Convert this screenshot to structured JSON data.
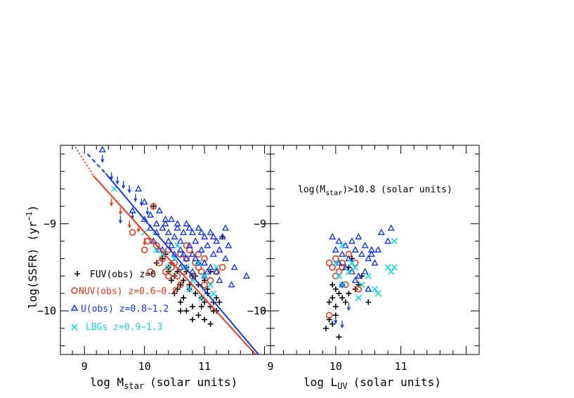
{
  "chart_data": [
    {
      "type": "scatter",
      "panel": "left",
      "xlabel": "log M_star (solar units)",
      "xlabel_main": "log M",
      "xlabel_sub": "star",
      "xlabel_rest": "(solar units)",
      "ylabel": "log(SSFR) (yr^-1)",
      "xlim": [
        8.6,
        12.1
      ],
      "ylim": [
        -10.5,
        -8.1
      ],
      "x_ticks": [
        "9",
        "10",
        "11"
      ],
      "y_ticks": [
        "-9",
        "-10"
      ],
      "colors": {
        "fuv": "#000000",
        "nuv": "#e8381a",
        "u": "#1438e0",
        "lbg": "#19d4e8"
      },
      "legend": [
        {
          "marker": "plus",
          "label": "FUV(obs)  z=0",
          "color": "#000000"
        },
        {
          "marker": "circle",
          "label": "NUV(obs)  z=0.6−0.8",
          "color": "#e8381a"
        },
        {
          "marker": "triangle",
          "label": "U(obs)  z=0.8−1.2",
          "color": "#1438e0"
        },
        {
          "marker": "cross",
          "label": "LBGs  z=0.9−1.3",
          "color": "#19d4e8"
        }
      ],
      "lines": [
        {
          "color": "#e8381a",
          "style": "dotted",
          "x": [
            8.85,
            9.15
          ],
          "y": [
            -8.12,
            -8.45
          ]
        },
        {
          "color": "#e8381a",
          "style": "solid",
          "x": [
            9.15,
            11.85
          ],
          "y": [
            -8.45,
            -10.5
          ]
        },
        {
          "color": "#1438e0",
          "style": "dashed",
          "x": [
            9.05,
            9.35
          ],
          "y": [
            -8.2,
            -8.42
          ]
        },
        {
          "color": "#1438e0",
          "style": "solid",
          "x": [
            9.35,
            11.9
          ],
          "y": [
            -8.42,
            -10.5
          ]
        }
      ],
      "series": [
        {
          "name": "FUV(obs) z=0",
          "marker": "plus",
          "color": "#000000",
          "x": [
            10.3,
            10.4,
            10.45,
            10.5,
            10.55,
            10.6,
            10.65,
            10.7,
            10.75,
            10.8,
            10.85,
            10.9,
            10.95,
            11.0,
            11.05,
            11.1,
            11.15,
            11.2,
            11.25,
            10.5,
            10.6,
            10.7,
            10.8,
            10.9,
            11.0,
            11.1,
            11.2,
            10.45,
            10.55,
            10.65,
            10.75,
            10.85,
            10.95,
            11.05,
            11.15,
            10.4,
            10.6,
            10.8,
            11.0,
            10.2,
            10.7,
            10.9,
            11.1,
            10.35,
            10.15,
            11.3
          ],
          "y": [
            -9.4,
            -9.5,
            -9.45,
            -9.6,
            -9.55,
            -9.7,
            -9.65,
            -9.5,
            -9.75,
            -9.6,
            -9.8,
            -9.7,
            -9.85,
            -9.9,
            -9.75,
            -9.95,
            -10.0,
            -9.85,
            -9.9,
            -9.8,
            -9.9,
            -10.0,
            -9.95,
            -10.05,
            -10.1,
            -10.15,
            -10.0,
            -9.65,
            -9.75,
            -9.85,
            -9.7,
            -9.6,
            -9.95,
            -9.8,
            -9.9,
            -9.55,
            -10.0,
            -10.1,
            -9.65,
            -9.45,
            -9.55,
            -9.45,
            -9.55,
            -9.35,
            -8.8,
            -9.15
          ]
        },
        {
          "name": "NUV(obs) z=0.6-0.8",
          "marker": "circle",
          "color": "#e8381a",
          "x": [
            10.15,
            10.2,
            10.25,
            10.3,
            10.35,
            10.4,
            10.45,
            10.5,
            10.55,
            10.6,
            10.65,
            10.7,
            10.75,
            10.8,
            10.85,
            10.9,
            10.95,
            11.0,
            11.1,
            11.2,
            11.3,
            10.05,
            10.1,
            9.8,
            10.0,
            10.4,
            10.6,
            10.7,
            10.9,
            11.0
          ],
          "y": [
            -8.8,
            -9.25,
            -9.45,
            -9.4,
            -9.55,
            -9.3,
            -9.5,
            -9.45,
            -9.6,
            -9.35,
            -9.55,
            -9.4,
            -9.3,
            -9.6,
            -9.45,
            -9.5,
            -9.55,
            -9.4,
            -9.65,
            -9.55,
            -9.5,
            -9.2,
            -9.55,
            -9.1,
            -9.3,
            -9.6,
            -9.7,
            -9.25,
            -9.35,
            -9.7
          ]
        },
        {
          "name": "U(obs) z=0.8-1.2",
          "marker": "triangle",
          "color": "#1438e0",
          "x": [
            9.3,
            9.9,
            10.0,
            10.1,
            10.2,
            10.25,
            10.3,
            10.35,
            10.4,
            10.45,
            10.5,
            10.55,
            10.6,
            10.65,
            10.7,
            10.75,
            10.8,
            10.85,
            10.9,
            10.95,
            11.0,
            11.05,
            11.1,
            11.15,
            11.2,
            11.25,
            11.3,
            11.35,
            11.4,
            11.5,
            11.7,
            10.15,
            10.3,
            10.5,
            10.7,
            10.9,
            11.1,
            10.2,
            10.4,
            10.6,
            10.8,
            11.0,
            11.2,
            10.35,
            10.55,
            10.75,
            10.95,
            11.15,
            11.35,
            10.25,
            10.45,
            10.65,
            10.85,
            11.05,
            11.25,
            11.45,
            10.6,
            10.8,
            11.0,
            9.8,
            10.0,
            10.1
          ],
          "y": [
            -8.15,
            -8.6,
            -8.75,
            -8.9,
            -9.0,
            -8.85,
            -9.05,
            -9.0,
            -9.1,
            -8.95,
            -9.15,
            -9.05,
            -9.2,
            -9.1,
            -9.0,
            -9.25,
            -9.1,
            -9.2,
            -9.05,
            -9.3,
            -9.15,
            -9.25,
            -9.1,
            -9.35,
            -9.2,
            -9.3,
            -9.15,
            -9.4,
            -9.25,
            -9.5,
            -9.6,
            -9.2,
            -9.3,
            -9.35,
            -9.4,
            -9.45,
            -9.5,
            -9.1,
            -9.2,
            -9.3,
            -9.35,
            -9.45,
            -9.55,
            -8.95,
            -9.0,
            -9.05,
            -9.1,
            -9.15,
            -9.05,
            -9.3,
            -9.25,
            -9.35,
            -9.4,
            -9.55,
            -9.65,
            -9.7,
            -9.5,
            -9.55,
            -9.6,
            -8.85,
            -8.95,
            -9.05
          ]
        },
        {
          "name": "LBGs z=0.9-1.3",
          "marker": "cross",
          "color": "#19d4e8",
          "x": [
            9.5,
            10.0,
            10.2,
            10.3,
            10.4,
            10.5,
            10.6,
            10.7,
            10.8,
            10.9,
            11.0,
            11.1,
            11.2,
            10.55,
            10.75,
            10.95,
            11.15
          ],
          "y": [
            -8.6,
            -9.1,
            -9.3,
            -9.35,
            -9.5,
            -9.4,
            -9.55,
            -9.5,
            -9.65,
            -9.45,
            -9.6,
            -9.7,
            -9.5,
            -9.25,
            -9.75,
            -9.85,
            -9.8
          ]
        },
        {
          "name": "upper limits",
          "marker": "arrow",
          "color": "#1438e0",
          "x": [
            9.3,
            9.45,
            9.55,
            9.65,
            9.75,
            9.85,
            9.95,
            10.05,
            9.6,
            9.8
          ],
          "y": [
            -8.25,
            -8.45,
            -8.5,
            -8.55,
            -8.6,
            -8.7,
            -8.75,
            -8.85,
            -8.95,
            -8.9
          ]
        },
        {
          "name": "upper limits red",
          "marker": "arrow",
          "color": "#e8381a",
          "x": [
            9.45,
            9.6,
            9.75,
            9.9,
            10.0
          ],
          "y": [
            -8.75,
            -8.85,
            -9.0,
            -9.05,
            -9.2
          ]
        }
      ]
    },
    {
      "type": "scatter",
      "panel": "right",
      "annotation": "log(M_star)>10.8 (solar units)",
      "annotation_main": "log(M",
      "annotation_sub": "star",
      "annotation_rest": ")>10.8  (solar units)",
      "xlabel": "log L_UV (solar units)",
      "xlabel_main": "log L",
      "xlabel_sub": "UV",
      "xlabel_rest": "(solar units)",
      "xlim": [
        9.0,
        12.2
      ],
      "ylim": [
        -10.5,
        -8.1
      ],
      "x_ticks": [
        "9",
        "10",
        "11"
      ],
      "y_ticks": [
        "-9",
        "-10"
      ],
      "series": [
        {
          "name": "FUV(obs) z=0",
          "marker": "plus",
          "color": "#000000",
          "x": [
            9.9,
            9.95,
            10.0,
            10.05,
            9.9,
            9.95,
            10.0,
            9.85,
            10.1,
            10.15,
            10.2,
            10.3,
            10.35,
            10.4,
            10.5,
            10.0,
            10.1,
            9.95,
            10.05,
            10.2,
            10.25
          ],
          "y": [
            -10.1,
            -10.15,
            -10.05,
            -10.3,
            -9.9,
            -9.85,
            -9.95,
            -10.2,
            -9.85,
            -9.9,
            -9.8,
            -9.75,
            -9.7,
            -9.6,
            -9.9,
            -9.75,
            -9.7,
            -9.7,
            -9.8,
            -9.5,
            -9.4
          ]
        },
        {
          "name": "NUV(obs) z=0.6-0.8",
          "marker": "circle",
          "color": "#e8381a",
          "x": [
            9.9,
            9.95,
            10.0,
            10.05,
            10.1,
            10.15,
            10.2,
            10.3,
            10.35,
            9.9,
            10.0,
            10.1
          ],
          "y": [
            -9.45,
            -9.5,
            -9.4,
            -9.55,
            -9.45,
            -9.7,
            -9.35,
            -9.45,
            -9.75,
            -10.05,
            -9.6,
            -9.5
          ]
        },
        {
          "name": "U(obs) z=0.8-1.2",
          "marker": "triangle",
          "color": "#1438e0",
          "x": [
            9.95,
            10.0,
            10.05,
            10.1,
            10.15,
            10.2,
            10.25,
            10.3,
            10.35,
            10.4,
            10.45,
            10.5,
            10.55,
            10.6,
            10.7,
            10.8,
            10.85,
            10.05,
            10.15,
            10.25,
            10.35,
            10.45,
            10.55,
            10.65,
            10.1,
            10.3,
            10.5
          ],
          "y": [
            -9.15,
            -9.3,
            -9.2,
            -9.35,
            -9.25,
            -9.4,
            -9.2,
            -9.3,
            -9.15,
            -9.35,
            -9.25,
            -9.4,
            -9.3,
            -9.45,
            -9.1,
            -9.2,
            -9.05,
            -9.45,
            -9.5,
            -9.55,
            -9.6,
            -9.55,
            -9.35,
            -9.3,
            -9.7,
            -9.65,
            -9.75
          ]
        },
        {
          "name": "LBGs z=0.9-1.3",
          "marker": "cross",
          "color": "#19d4e8",
          "x": [
            10.0,
            10.05,
            10.1,
            10.2,
            10.3,
            10.35,
            10.4,
            10.5,
            10.6,
            10.65,
            10.8,
            10.85,
            10.9,
            10.9,
            10.1,
            10.25
          ],
          "y": [
            -9.45,
            -9.6,
            -9.25,
            -9.55,
            -9.5,
            -9.85,
            -9.7,
            -9.6,
            -9.75,
            -9.8,
            -9.5,
            -9.55,
            -9.2,
            -9.5,
            -9.7,
            -9.45
          ]
        },
        {
          "name": "upper limits",
          "marker": "arrow",
          "color": "#1438e0",
          "x": [
            10.0,
            10.1,
            10.2
          ],
          "y": [
            -10.1,
            -10.15,
            -9.95
          ]
        }
      ]
    }
  ]
}
